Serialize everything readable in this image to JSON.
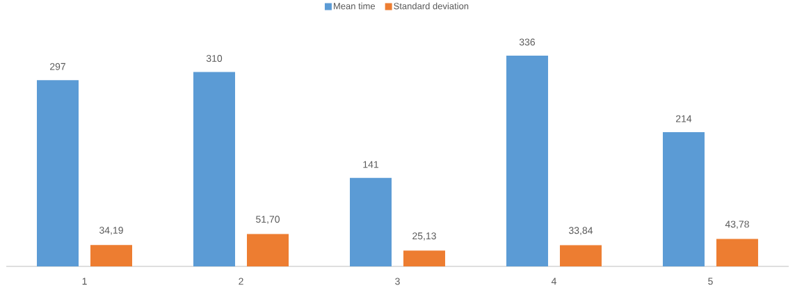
{
  "chart_data": {
    "type": "bar",
    "categories": [
      "1",
      "2",
      "3",
      "4",
      "5"
    ],
    "series": [
      {
        "name": "Mean time",
        "color": "#5b9bd5",
        "values": [
          297,
          310,
          141,
          336,
          214
        ],
        "value_labels": [
          "297",
          "310",
          "141",
          "336",
          "214"
        ]
      },
      {
        "name": "Standard deviation",
        "color": "#ed7d31",
        "values": [
          34.19,
          51.7,
          25.13,
          33.84,
          43.78
        ],
        "value_labels": [
          "34,19",
          "51,70",
          "25,13",
          "33,84",
          "43,78"
        ]
      }
    ],
    "legend": "top"
  }
}
